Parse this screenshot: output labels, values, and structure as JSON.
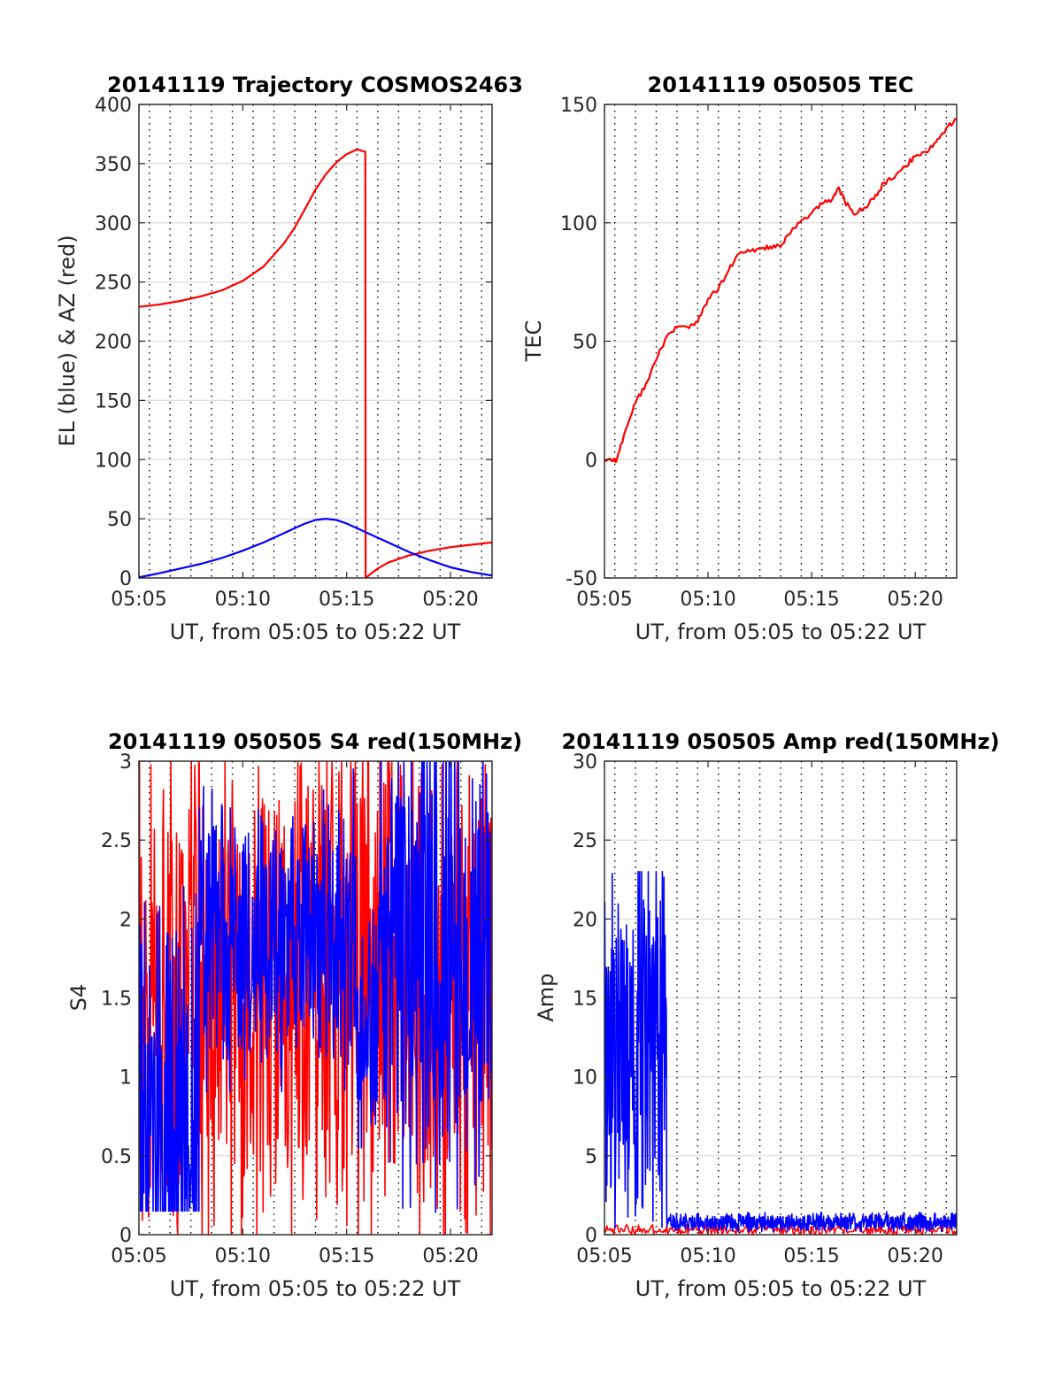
{
  "figure": {
    "xaxis_shared": {
      "range_minutes": [
        0,
        17
      ],
      "tick_minutes": [
        0,
        5,
        10,
        15
      ],
      "tick_labels": [
        "05:05",
        "05:10",
        "05:15",
        "05:20"
      ],
      "dotted_grid_minutes": [
        0.5,
        1.5,
        2.5,
        3.5,
        4.5,
        5.5,
        6.5,
        7.5,
        8.5,
        9.5,
        10.5,
        11.5,
        12.5,
        13.5,
        14.5,
        15.5,
        16.5
      ],
      "label": "UT, from 05:05 to 05:22 UT"
    },
    "colors": {
      "red": "#ff0000",
      "blue": "#0000ff"
    }
  },
  "chart_data": [
    {
      "type": "line",
      "title": "20141119 Trajectory COSMOS2463",
      "xlabel": "UT, from 05:05 to 05:22 UT",
      "ylabel": "EL (blue) & AZ (red)",
      "ylim": [
        0,
        400
      ],
      "yticks": [
        0,
        50,
        100,
        150,
        200,
        250,
        300,
        350,
        400
      ],
      "ytick_labels": [
        "0",
        "50",
        "100",
        "150",
        "200",
        "250",
        "300",
        "350",
        "400"
      ],
      "grid": true,
      "series": [
        {
          "color": "red",
          "x_minutes": [
            0,
            1,
            2,
            3,
            4,
            5,
            6,
            7,
            7.5,
            8,
            8.5,
            9,
            9.5,
            10,
            10.5,
            10.9,
            10.91,
            11.5,
            12,
            13,
            14,
            15,
            16,
            17
          ],
          "y": [
            229,
            231,
            234,
            238,
            243,
            251,
            263,
            283,
            296,
            312,
            328,
            341,
            351,
            358,
            362,
            360,
            0,
            8,
            13,
            19,
            23,
            26,
            28,
            30
          ]
        },
        {
          "color": "blue",
          "x_minutes": [
            0,
            1,
            2,
            3,
            4,
            5,
            6,
            7,
            7.5,
            8,
            8.5,
            9,
            9.5,
            10,
            11,
            12,
            13,
            14,
            15,
            16,
            17
          ],
          "y": [
            0.5,
            4,
            8,
            12,
            17,
            23,
            30,
            38,
            42,
            46,
            49,
            50,
            49,
            46,
            38,
            30,
            22,
            15,
            9,
            5,
            2
          ]
        }
      ]
    },
    {
      "type": "line",
      "title": "20141119 050505 TEC",
      "xlabel": "UT, from 05:05 to 05:22 UT",
      "ylabel": "TEC",
      "ylim": [
        -50,
        150
      ],
      "yticks": [
        -50,
        0,
        50,
        100,
        150
      ],
      "ytick_labels": [
        "-50",
        "0",
        "50",
        "100",
        "150"
      ],
      "grid": true,
      "series": [
        {
          "color": "red",
          "x_minutes": [
            0,
            0.3,
            0.6,
            1.0,
            1.5,
            2.0,
            2.5,
            3.0,
            3.5,
            4.0,
            4.5,
            5.0,
            5.5,
            6.0,
            6.5,
            7.0,
            7.5,
            8.0,
            8.5,
            9.0,
            9.5,
            10.0,
            10.5,
            11.0,
            11.3,
            11.6,
            12.0,
            12.5,
            13.0,
            13.5,
            14.0,
            14.5,
            15.0,
            15.5,
            16.0,
            16.5,
            17.0
          ],
          "y": [
            0,
            0,
            0,
            12,
            24,
            32,
            42,
            52,
            56,
            56,
            58,
            68,
            72,
            80,
            87,
            88,
            89,
            90,
            90,
            96,
            101,
            104,
            108,
            110,
            115,
            109,
            104,
            106,
            110,
            117,
            119,
            124,
            128,
            130,
            134,
            140,
            144
          ]
        }
      ]
    },
    {
      "type": "line",
      "title": "20141119 050505 S4 red(150MHz)",
      "xlabel": "UT, from 05:05 to 05:22 UT",
      "ylabel": "S4",
      "ylim": [
        0,
        3
      ],
      "yticks": [
        0,
        0.5,
        1,
        1.5,
        2,
        2.5,
        3
      ],
      "ytick_labels": [
        "0",
        "0.5",
        "1",
        "1.5",
        "2",
        "2.5",
        "3"
      ],
      "grid": true,
      "series": [
        {
          "color": "red",
          "dense_noise": {
            "x_range": [
              0,
              17
            ],
            "samples": 620,
            "min": 0,
            "max": 3,
            "mean": 1.6,
            "spread": 1.4
          }
        },
        {
          "color": "blue",
          "dense_noise": {
            "samples": 700,
            "segments": [
              {
                "x_range": [
                  0,
                  2.9
                ],
                "mean": 0.7,
                "spread": 1.4,
                "floor": 0.15
              },
              {
                "x_range": [
                  2.9,
                  10.5
                ],
                "mean": 1.9,
                "spread": 0.8,
                "floor": 0.8
              },
              {
                "x_range": [
                  10.5,
                  11.5
                ],
                "mean": 1.3,
                "spread": 0.8,
                "floor": 0.55
              },
              {
                "x_range": [
                  11.5,
                  17
                ],
                "mean": 1.8,
                "spread": 1.4,
                "floor": 0.0
              }
            ]
          }
        }
      ]
    },
    {
      "type": "line",
      "title": "20141119 050505 Amp red(150MHz)",
      "xlabel": "UT, from 05:05 to 05:22 UT",
      "ylabel": "Amp",
      "ylim": [
        0,
        30
      ],
      "yticks": [
        0,
        5,
        10,
        15,
        20,
        25,
        30
      ],
      "ytick_labels": [
        "0",
        "5",
        "10",
        "15",
        "20",
        "25",
        "30"
      ],
      "grid": true,
      "series": [
        {
          "color": "red",
          "dense_noise": {
            "x_range": [
              0,
              17
            ],
            "samples": 300,
            "min": 0,
            "max": 1.3,
            "mean": 0.3,
            "spread": 0.3
          }
        },
        {
          "color": "blue",
          "dense_noise": {
            "samples": 900,
            "segments": [
              {
                "x_range": [
                  0,
                  3.0
                ],
                "mean": 12,
                "spread": 10,
                "floor": 0.2,
                "ceiling": 23
              },
              {
                "x_range": [
                  3.0,
                  17
                ],
                "mean": 0.8,
                "spread": 0.5,
                "floor": 0.2,
                "ceiling": 2.2
              }
            ]
          }
        }
      ]
    }
  ]
}
